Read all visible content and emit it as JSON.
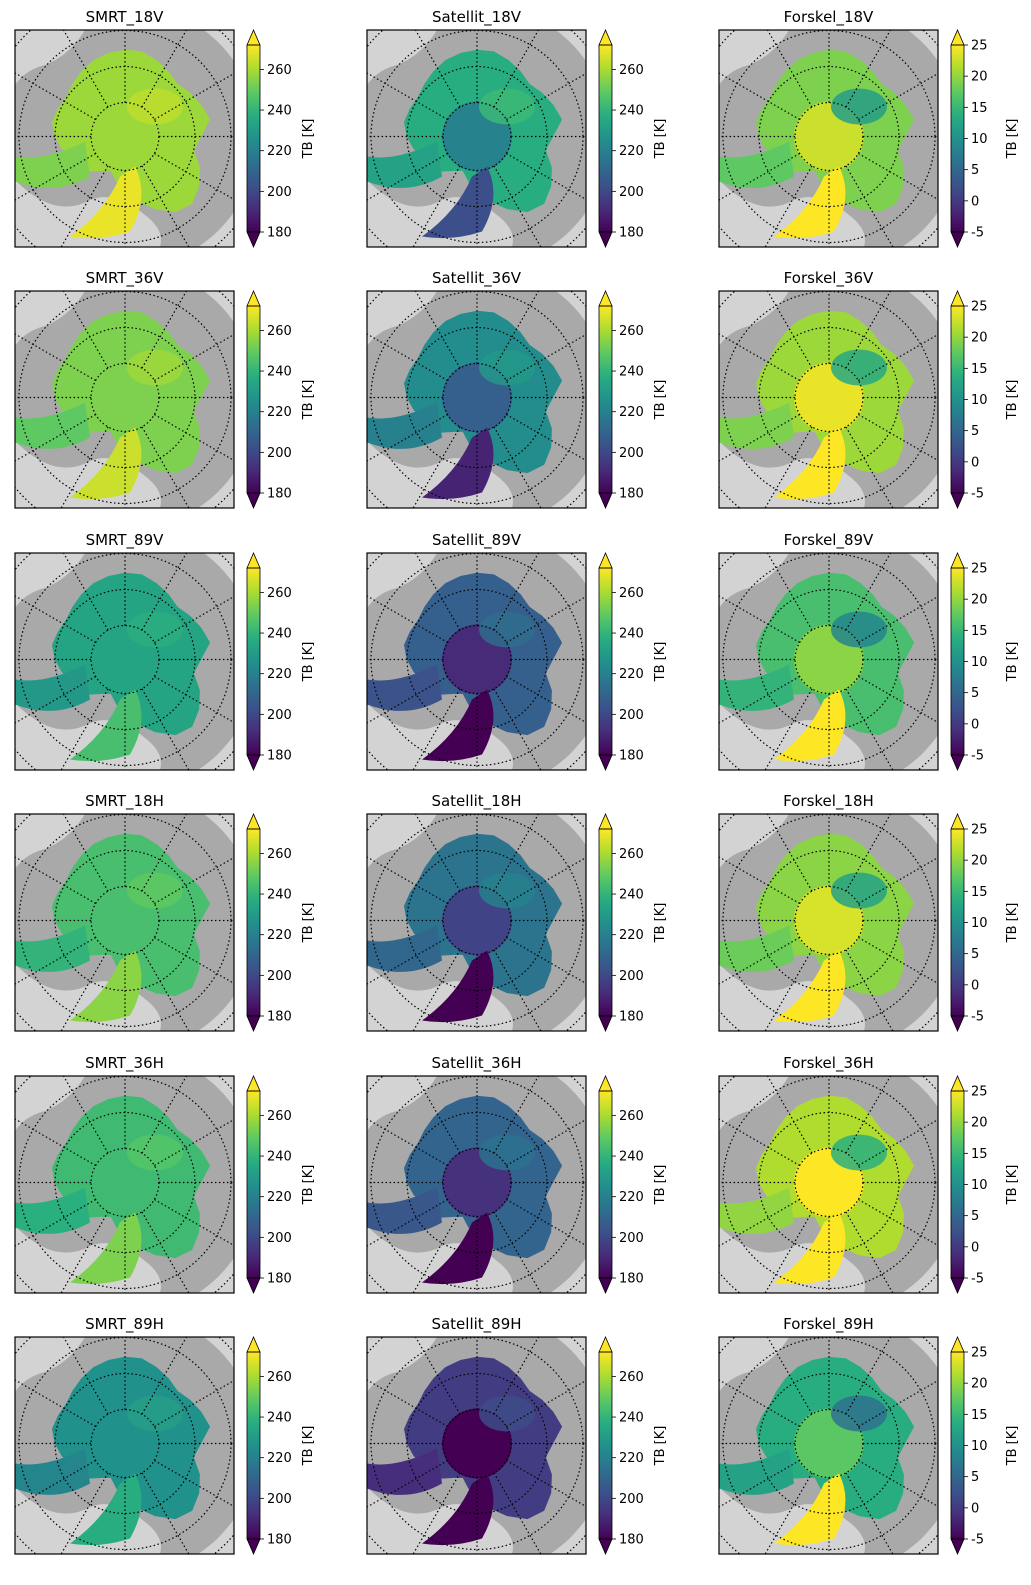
{
  "figure": {
    "rows": [
      {
        "polarization": "18V"
      },
      {
        "polarization": "36V"
      },
      {
        "polarization": "89V"
      },
      {
        "polarization": "18H"
      },
      {
        "polarization": "36H"
      },
      {
        "polarization": "89H"
      }
    ]
  },
  "chart_data": [
    {
      "type": "heatmap",
      "title": "SMRT_18V",
      "colorbar": {
        "label": "TB [K]",
        "ticks": [
          180,
          200,
          220,
          240,
          260
        ],
        "range": [
          180,
          272
        ],
        "colormap": "viridis",
        "extend": "both"
      }
    },
    {
      "type": "heatmap",
      "title": "Satellit_18V",
      "colorbar": {
        "label": "TB [K]",
        "ticks": [
          180,
          200,
          220,
          240,
          260
        ],
        "range": [
          180,
          272
        ],
        "colormap": "viridis",
        "extend": "both"
      }
    },
    {
      "type": "heatmap",
      "title": "Forskel_18V",
      "colorbar": {
        "label": "TB [K]",
        "ticks": [
          -5,
          0,
          5,
          10,
          15,
          20,
          25
        ],
        "range": [
          -5,
          25
        ],
        "colormap": "viridis",
        "extend": "both"
      }
    },
    {
      "type": "heatmap",
      "title": "SMRT_36V",
      "colorbar": {
        "label": "TB [K]",
        "ticks": [
          180,
          200,
          220,
          240,
          260
        ],
        "range": [
          180,
          272
        ],
        "colormap": "viridis",
        "extend": "both"
      }
    },
    {
      "type": "heatmap",
      "title": "Satellit_36V",
      "colorbar": {
        "label": "TB [K]",
        "ticks": [
          180,
          200,
          220,
          240,
          260
        ],
        "range": [
          180,
          272
        ],
        "colormap": "viridis",
        "extend": "both"
      }
    },
    {
      "type": "heatmap",
      "title": "Forskel_36V",
      "colorbar": {
        "label": "TB [K]",
        "ticks": [
          -5,
          0,
          5,
          10,
          15,
          20,
          25
        ],
        "range": [
          -5,
          25
        ],
        "colormap": "viridis",
        "extend": "both"
      }
    },
    {
      "type": "heatmap",
      "title": "SMRT_89V",
      "colorbar": {
        "label": "TB [K]",
        "ticks": [
          180,
          200,
          220,
          240,
          260
        ],
        "range": [
          180,
          272
        ],
        "colormap": "viridis",
        "extend": "both"
      }
    },
    {
      "type": "heatmap",
      "title": "Satellit_89V",
      "colorbar": {
        "label": "TB [K]",
        "ticks": [
          180,
          200,
          220,
          240,
          260
        ],
        "range": [
          180,
          272
        ],
        "colormap": "viridis",
        "extend": "both"
      }
    },
    {
      "type": "heatmap",
      "title": "Forskel_89V",
      "colorbar": {
        "label": "TB [K]",
        "ticks": [
          -5,
          0,
          5,
          10,
          15,
          20,
          25
        ],
        "range": [
          -5,
          25
        ],
        "colormap": "viridis",
        "extend": "both"
      }
    },
    {
      "type": "heatmap",
      "title": "SMRT_18H",
      "colorbar": {
        "label": "TB [K]",
        "ticks": [
          180,
          200,
          220,
          240,
          260
        ],
        "range": [
          180,
          272
        ],
        "colormap": "viridis",
        "extend": "both"
      }
    },
    {
      "type": "heatmap",
      "title": "Satellit_18H",
      "colorbar": {
        "label": "TB [K]",
        "ticks": [
          180,
          200,
          220,
          240,
          260
        ],
        "range": [
          180,
          272
        ],
        "colormap": "viridis",
        "extend": "both"
      }
    },
    {
      "type": "heatmap",
      "title": "Forskel_18H",
      "colorbar": {
        "label": "TB [K]",
        "ticks": [
          -5,
          0,
          5,
          10,
          15,
          20,
          25
        ],
        "range": [
          -5,
          25
        ],
        "colormap": "viridis",
        "extend": "both"
      }
    },
    {
      "type": "heatmap",
      "title": "SMRT_36H",
      "colorbar": {
        "label": "TB [K]",
        "ticks": [
          180,
          200,
          220,
          240,
          260
        ],
        "range": [
          180,
          272
        ],
        "colormap": "viridis",
        "extend": "both"
      }
    },
    {
      "type": "heatmap",
      "title": "Satellit_36H",
      "colorbar": {
        "label": "TB [K]",
        "ticks": [
          180,
          200,
          220,
          240,
          260
        ],
        "range": [
          180,
          272
        ],
        "colormap": "viridis",
        "extend": "both"
      }
    },
    {
      "type": "heatmap",
      "title": "Forskel_36H",
      "colorbar": {
        "label": "TB [K]",
        "ticks": [
          -5,
          0,
          5,
          10,
          15,
          20,
          25
        ],
        "range": [
          -5,
          25
        ],
        "colormap": "viridis",
        "extend": "both"
      }
    },
    {
      "type": "heatmap",
      "title": "SMRT_89H",
      "colorbar": {
        "label": "TB [K]",
        "ticks": [
          180,
          200,
          220,
          240,
          260
        ],
        "range": [
          180,
          272
        ],
        "colormap": "viridis",
        "extend": "both"
      }
    },
    {
      "type": "heatmap",
      "title": "Satellit_89H",
      "colorbar": {
        "label": "TB [K]",
        "ticks": [
          180,
          200,
          220,
          240,
          260
        ],
        "range": [
          180,
          272
        ],
        "colormap": "viridis",
        "extend": "both"
      }
    },
    {
      "type": "heatmap",
      "title": "Forskel_89H",
      "colorbar": {
        "label": "TB [K]",
        "ticks": [
          -5,
          0,
          5,
          10,
          15,
          20,
          25
        ],
        "range": [
          -5,
          25
        ],
        "colormap": "viridis",
        "extend": "both"
      }
    }
  ],
  "colors": {
    "ocean": "#a9a9a9",
    "land": "#d3d3d3",
    "gridline": "#000000"
  }
}
